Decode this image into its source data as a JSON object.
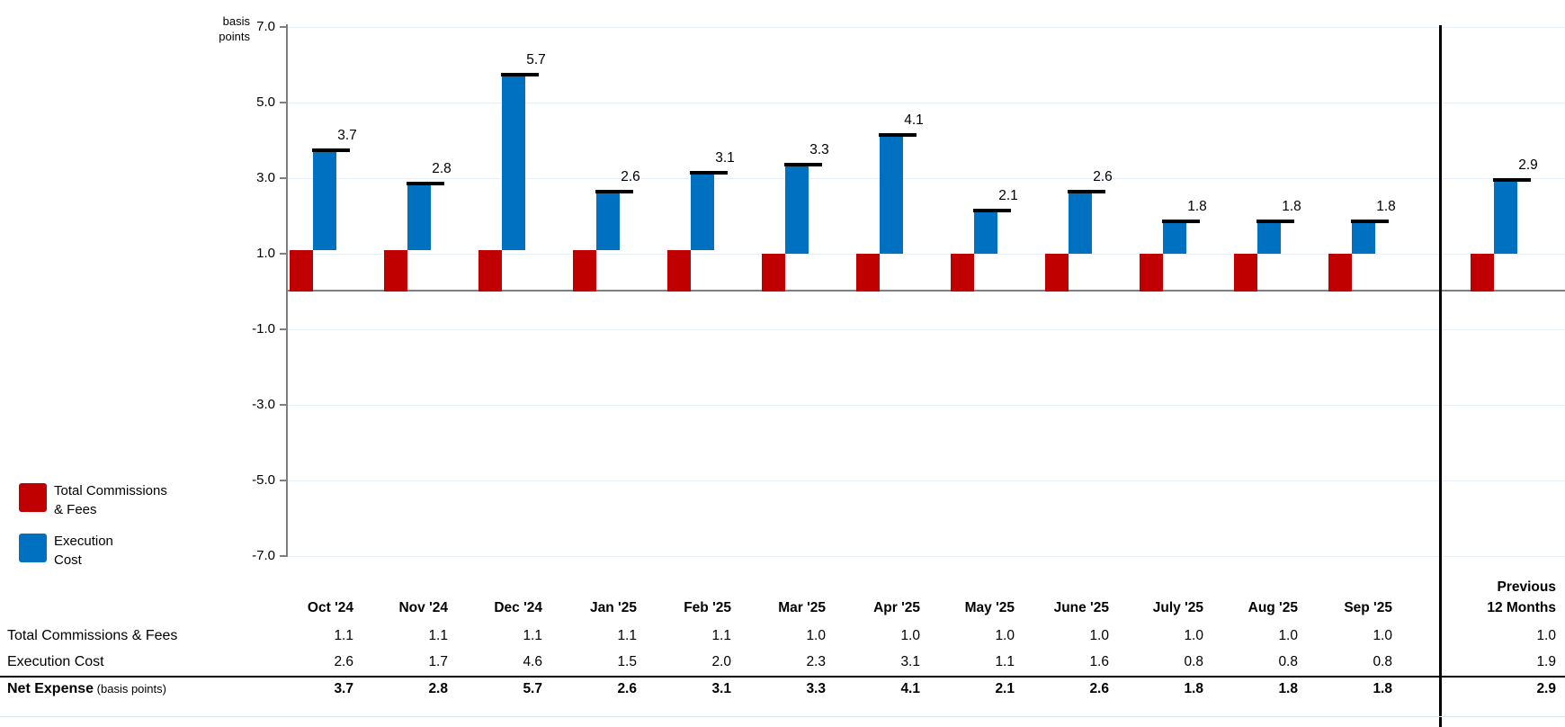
{
  "chart_data": {
    "type": "bar",
    "subtype": "floating-stacked-columns-with-total-markers",
    "title": "",
    "unit_label_lines": [
      "basis",
      "points"
    ],
    "categories": [
      "Oct '24",
      "Nov '24",
      "Dec '24",
      "Jan '25",
      "Feb '25",
      "Mar '25",
      "Apr '25",
      "May '25",
      "June '25",
      "July '25",
      "Aug '25",
      "Sep '25",
      "Previous 12 Months"
    ],
    "last_category_lines": [
      "Previous",
      "12 Months"
    ],
    "series": [
      {
        "name": "Total Commissions & Fees",
        "color": "#C00000",
        "values": [
          1.1,
          1.1,
          1.1,
          1.1,
          1.1,
          1.0,
          1.0,
          1.0,
          1.0,
          1.0,
          1.0,
          1.0,
          1.0
        ]
      },
      {
        "name": "Execution Cost",
        "color": "#0070C0",
        "values": [
          2.6,
          1.7,
          4.6,
          1.5,
          2.0,
          2.3,
          3.1,
          1.1,
          1.6,
          0.8,
          0.8,
          0.8,
          1.9
        ]
      }
    ],
    "totals": {
      "label": "Net Expense",
      "label_suffix": "(basis points)",
      "values": [
        3.7,
        2.8,
        5.7,
        2.6,
        3.1,
        3.3,
        4.1,
        2.1,
        2.6,
        1.8,
        1.8,
        1.8,
        2.9
      ]
    },
    "ylim": [
      -7.0,
      7.0
    ],
    "yticks": [
      7.0,
      5.0,
      3.0,
      1.0,
      -1.0,
      -3.0,
      -5.0,
      -7.0
    ],
    "grid": true,
    "legend_position": "bottom-left",
    "legend": [
      {
        "label_lines": [
          "Total Commissions",
          "& Fees"
        ],
        "color": "#C00000"
      },
      {
        "label_lines": [
          "Execution",
          "Cost"
        ],
        "color": "#0070C0"
      }
    ],
    "separator_after_index": 11
  },
  "colors": {
    "commissions": "#C00000",
    "execution": "#0070C0",
    "axis": "#7f7f7f",
    "zero_line": "#7f7f7f",
    "gridline": "#e9eff8",
    "divider": "#000000",
    "total_marker": "#000000"
  }
}
